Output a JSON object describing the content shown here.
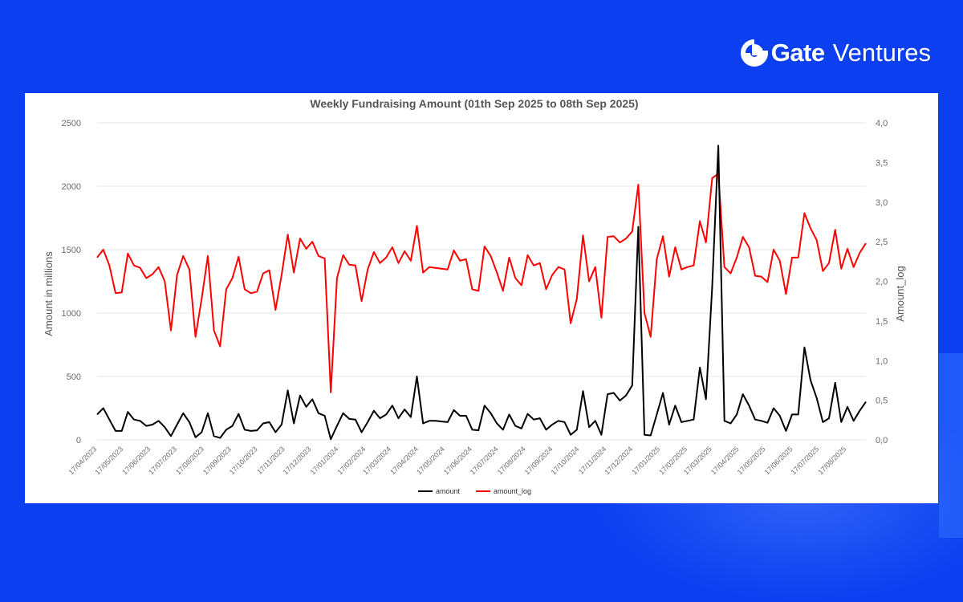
{
  "brand": {
    "name_bold": "Gate",
    "name_light": "Ventures",
    "icon": "gate-logo-icon"
  },
  "colors": {
    "background": "#0b3ff0",
    "card": "#ffffff",
    "amount": "#000000",
    "amount_log": "#ff0000",
    "gridline": "#e6e6e6"
  },
  "chart_data": {
    "type": "line",
    "title": "Weekly Fundraising Amount (01th Sep 2025 to 08th Sep 2025)",
    "ylabel": "Amount in millions",
    "y2label": "Amount_log",
    "ylim": [
      0,
      2500
    ],
    "y2lim": [
      0,
      4
    ],
    "yticks": [
      "0",
      "500",
      "1000",
      "1500",
      "2000",
      "2500"
    ],
    "y2ticks": [
      "0,0",
      "0,5",
      "1,0",
      "1,5",
      "2,0",
      "2,5",
      "3,0",
      "3,5",
      "4,0"
    ],
    "grid": true,
    "legend_position": "bottom-center",
    "x_range": [
      "2023-04-17",
      "2025-09-08"
    ],
    "xticks": [
      "17/04/2023",
      "17/05/2023",
      "17/06/2023",
      "17/07/2023",
      "17/08/2023",
      "17/09/2023",
      "17/10/2023",
      "17/11/2023",
      "17/12/2023",
      "17/01/2024",
      "17/02/2024",
      "17/03/2024",
      "17/04/2024",
      "17/05/2024",
      "17/06/2024",
      "17/07/2024",
      "17/08/2024",
      "17/09/2024",
      "17/10/2024",
      "17/11/2024",
      "17/12/2024",
      "17/01/2025",
      "17/02/2025",
      "17/03/2025",
      "17/04/2025",
      "17/05/2025",
      "17/06/2025",
      "17/07/2025",
      "17/08/2025"
    ],
    "series": [
      {
        "name": "amount",
        "color": "#000000",
        "axis": "left",
        "values": [
          200,
          250,
          160,
          70,
          70,
          220,
          160,
          150,
          110,
          120,
          150,
          100,
          30,
          120,
          210,
          140,
          20,
          60,
          210,
          30,
          15,
          80,
          110,
          205,
          80,
          70,
          75,
          130,
          140,
          60,
          120,
          390,
          130,
          350,
          260,
          320,
          210,
          190,
          5,
          110,
          210,
          165,
          160,
          60,
          140,
          230,
          170,
          200,
          270,
          170,
          240,
          180,
          500,
          130,
          150,
          150,
          145,
          140,
          235,
          190,
          190,
          80,
          75,
          270,
          210,
          130,
          80,
          200,
          110,
          90,
          205,
          160,
          170,
          80,
          120,
          150,
          140,
          40,
          80,
          385,
          100,
          150,
          40,
          360,
          370,
          310,
          350,
          430,
          1680,
          40,
          35,
          200,
          370,
          120,
          270,
          140,
          150,
          160,
          570,
          320,
          1200,
          2320,
          150,
          130,
          200,
          360,
          270,
          160,
          150,
          135,
          250,
          190,
          70,
          200,
          200,
          730,
          470,
          330,
          140,
          170,
          450,
          140,
          260,
          150,
          230,
          300
        ]
      },
      {
        "name": "amount_log",
        "color": "#ff0000",
        "axis": "right",
        "values": [
          2.3,
          2.4,
          2.2,
          1.85,
          1.86,
          2.35,
          2.2,
          2.17,
          2.04,
          2.09,
          2.18,
          2.0,
          1.38,
          2.08,
          2.32,
          2.15,
          1.3,
          1.78,
          2.32,
          1.38,
          1.18,
          1.9,
          2.04,
          2.31,
          1.9,
          1.85,
          1.87,
          2.1,
          2.14,
          1.64,
          2.08,
          2.59,
          2.11,
          2.54,
          2.41,
          2.5,
          2.32,
          2.29,
          0.6,
          2.04,
          2.33,
          2.21,
          2.2,
          1.75,
          2.15,
          2.37,
          2.23,
          2.3,
          2.43,
          2.23,
          2.38,
          2.26,
          2.7,
          2.11,
          2.18,
          2.17,
          2.16,
          2.15,
          2.39,
          2.26,
          2.28,
          1.9,
          1.88,
          2.44,
          2.32,
          2.11,
          1.88,
          2.3,
          2.04,
          1.95,
          2.33,
          2.2,
          2.23,
          1.9,
          2.08,
          2.18,
          2.15,
          1.47,
          1.78,
          2.58,
          2.0,
          2.18,
          1.54,
          2.56,
          2.57,
          2.49,
          2.54,
          2.63,
          3.22,
          1.6,
          1.3,
          2.28,
          2.57,
          2.06,
          2.43,
          2.15,
          2.18,
          2.2,
          2.76,
          2.49,
          3.3,
          3.36,
          2.18,
          2.1,
          2.3,
          2.56,
          2.43,
          2.07,
          2.06,
          1.99,
          2.4,
          2.26,
          1.84,
          2.3,
          2.3,
          2.86,
          2.67,
          2.52,
          2.13,
          2.23,
          2.65,
          2.16,
          2.41,
          2.18,
          2.36,
          2.48
        ]
      }
    ]
  }
}
